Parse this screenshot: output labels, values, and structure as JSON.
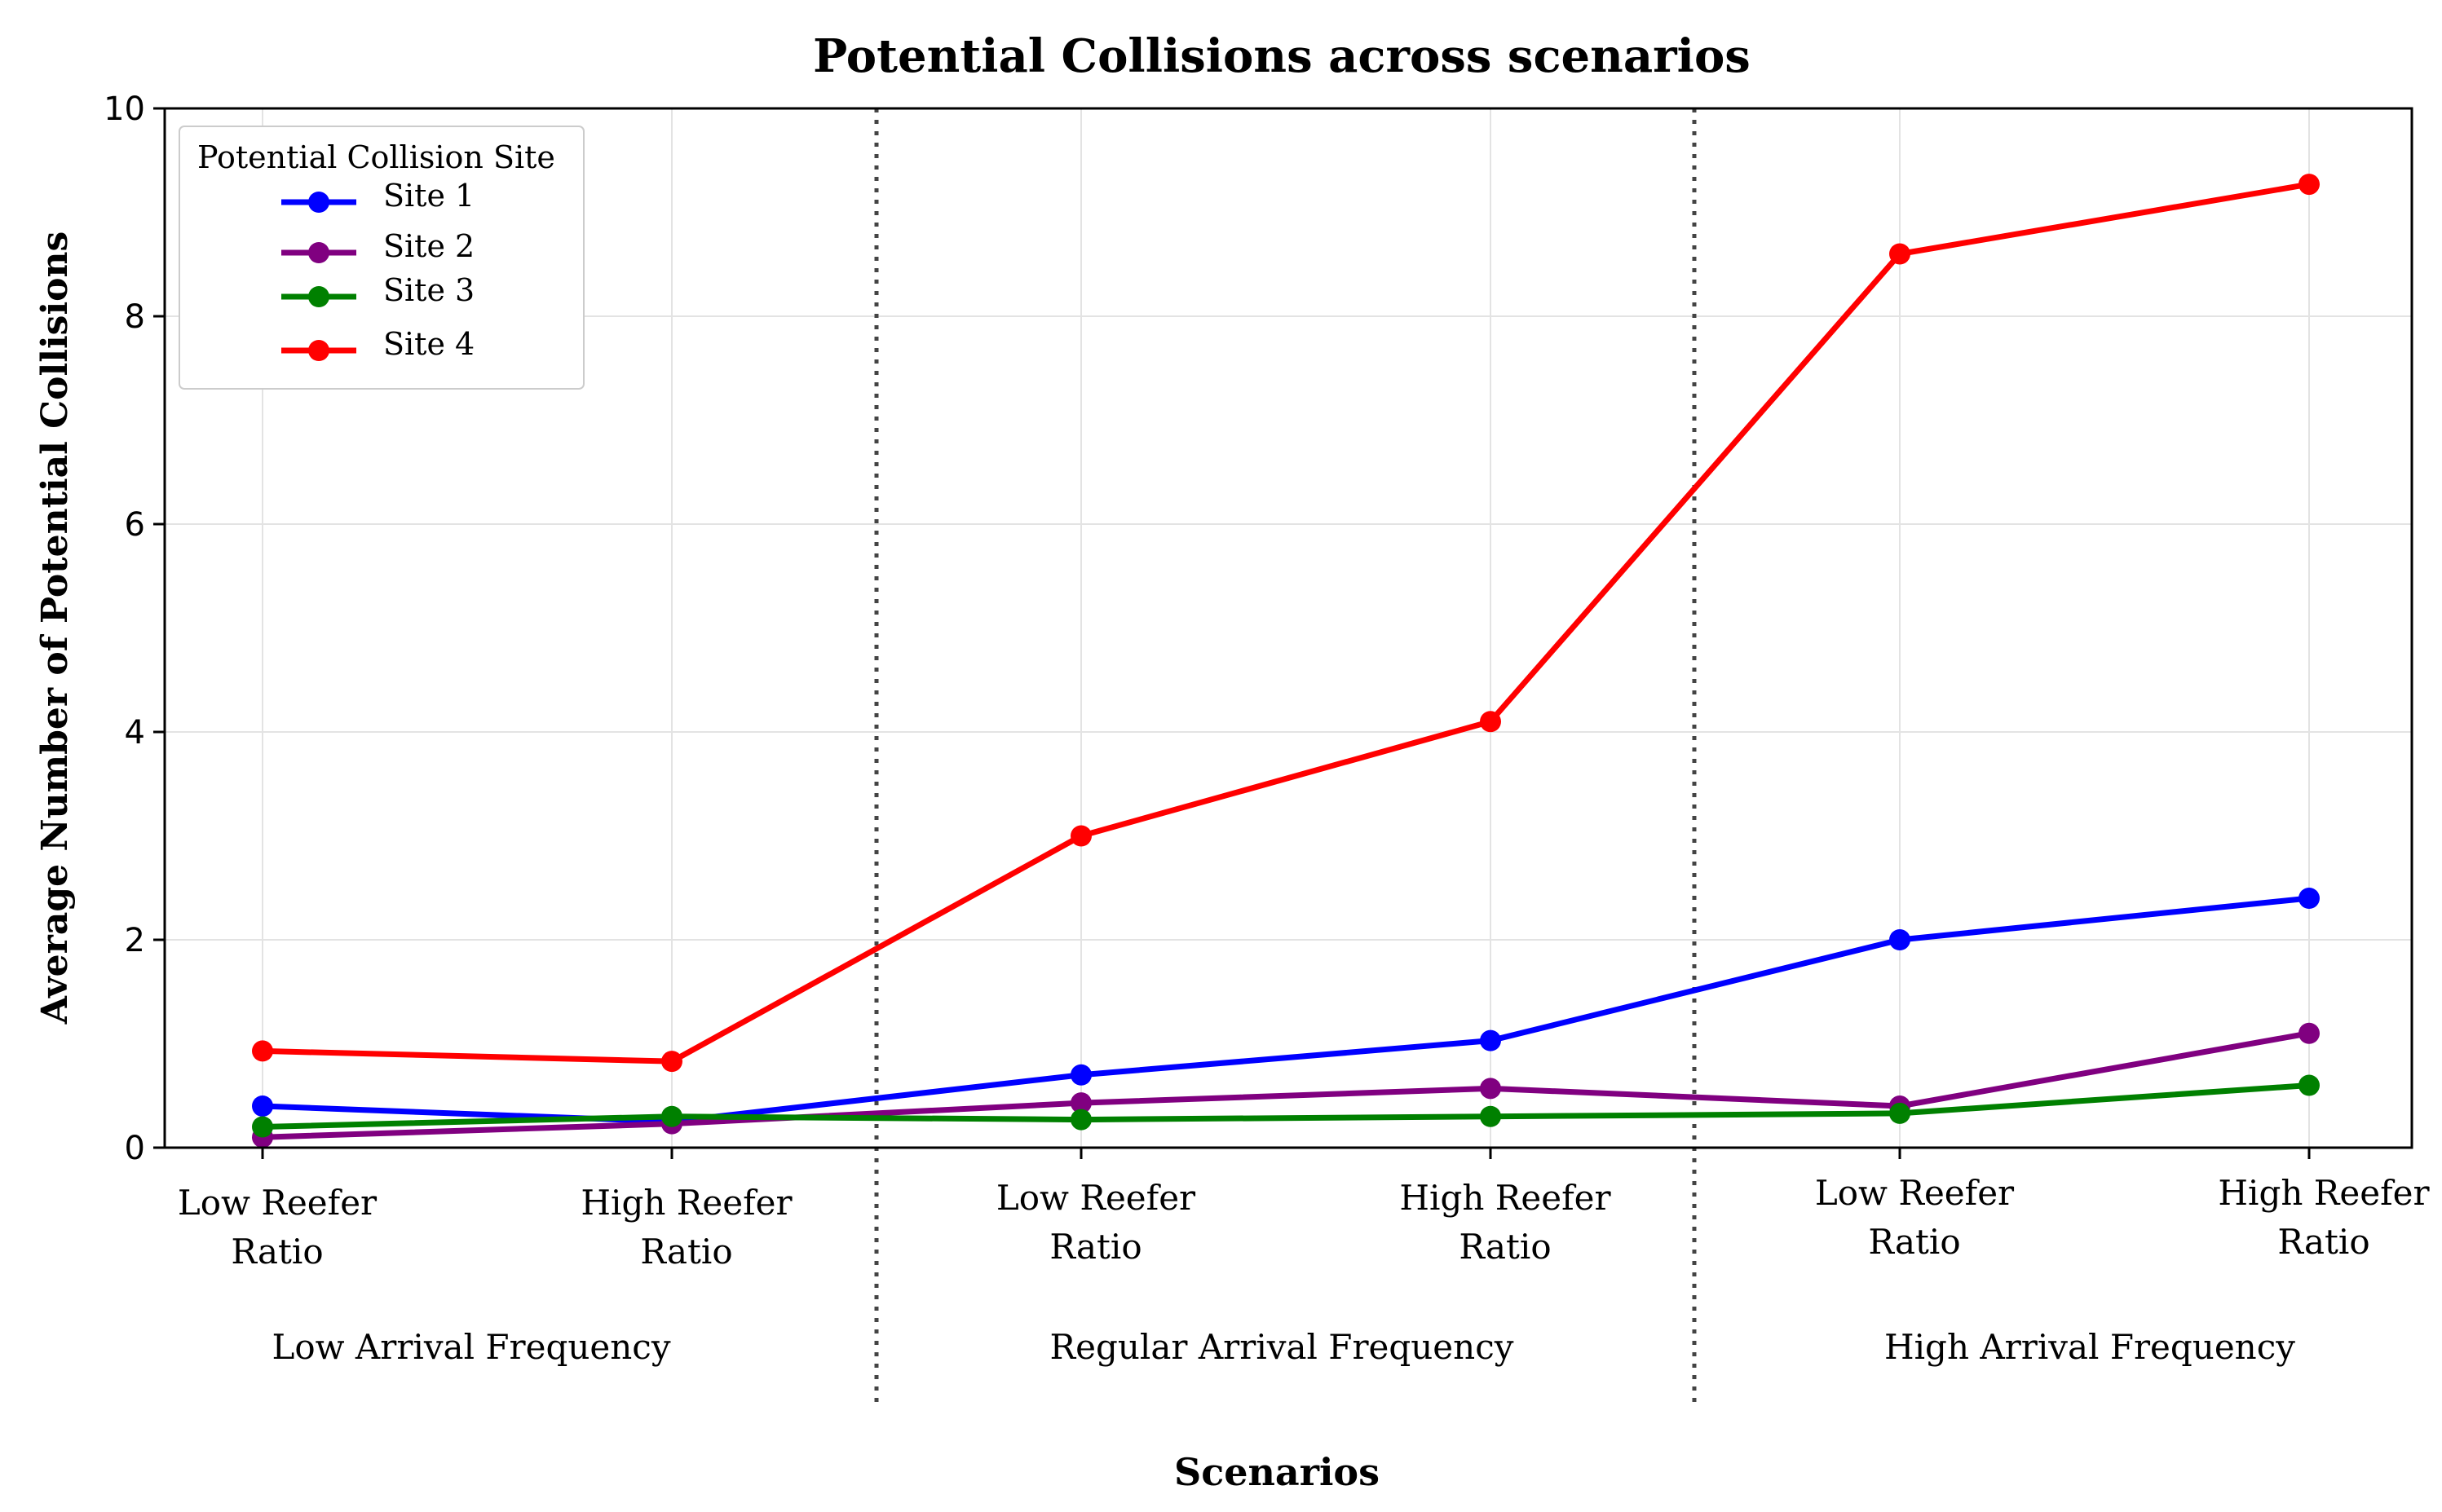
{
  "chart_data": {
    "type": "line",
    "title": "Potential Collisions across scenarios",
    "xlabel": "Scenarios",
    "ylabel": "Average Number of Potential Collisions",
    "ylim": [
      0,
      10
    ],
    "yticks": [
      "0",
      "2",
      "4",
      "6",
      "8",
      "10"
    ],
    "grid": true,
    "categories": [
      [
        "Low Reefer",
        "Ratio"
      ],
      [
        "High Reefer",
        "Ratio"
      ],
      [
        "Low Reefer",
        "Ratio"
      ],
      [
        "High Reefer",
        "Ratio"
      ],
      [
        "Low Reefer",
        "Ratio"
      ],
      [
        "High Reefer",
        "Ratio"
      ]
    ],
    "groups": [
      "Low Arrival Frequency",
      "Regular Arrival Frequency",
      "High Arrival Frequency"
    ],
    "legend": {
      "title": "Potential Collision Site",
      "position": "top-left"
    },
    "series": [
      {
        "name": "Site 1",
        "color": "#0000ff",
        "values": [
          0.4,
          0.25,
          0.7,
          1.03,
          2.0,
          2.4
        ]
      },
      {
        "name": "Site 2",
        "color": "#800080",
        "values": [
          0.1,
          0.23,
          0.43,
          0.57,
          0.4,
          1.1
        ]
      },
      {
        "name": "Site 3",
        "color": "#008000",
        "values": [
          0.2,
          0.3,
          0.27,
          0.3,
          0.33,
          0.6
        ]
      },
      {
        "name": "Site 4",
        "color": "#ff0000",
        "values": [
          0.93,
          0.83,
          3.0,
          4.1,
          8.6,
          9.27
        ]
      }
    ]
  }
}
